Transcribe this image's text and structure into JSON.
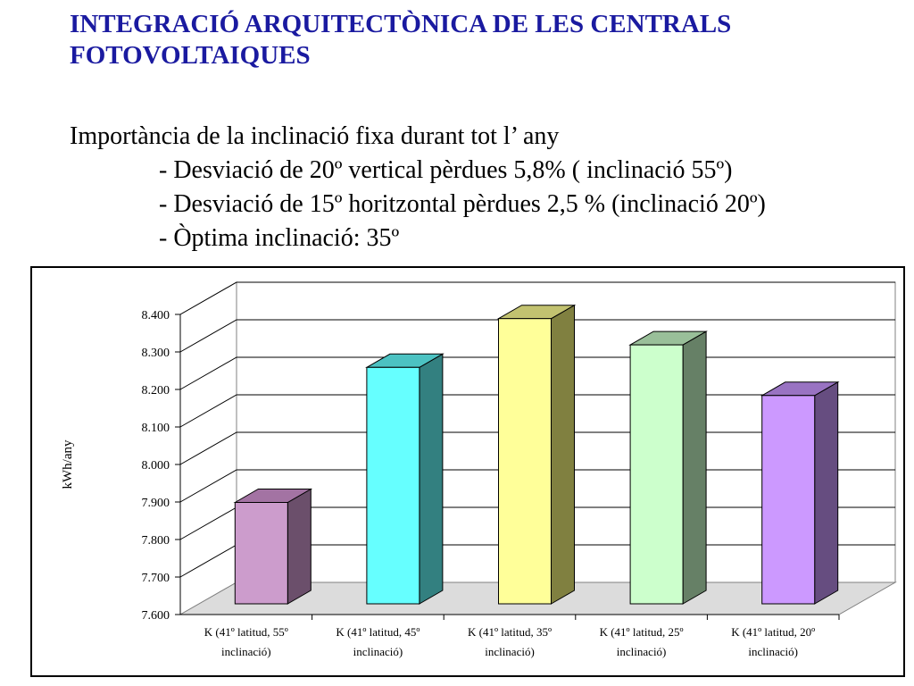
{
  "title": {
    "lines": [
      "INTEGRACIÓ ARQUITECTÒNICA DE LES CENTRALS",
      "FOTOVOLTAIQUES"
    ],
    "color": "#1a1aa0"
  },
  "body": {
    "heading": "Importància de la inclinació fixa durant tot l’ any",
    "bullets": [
      "- Desviació de 20º vertical pèrdues 5,8% ( inclinació 55º)",
      "- Desviació de 15º horitzontal pèrdues 2,5 % (inclinació 20º)",
      "- Òptima inclinació: 35º"
    ]
  },
  "chart_data": {
    "type": "bar",
    "style": "3d-column",
    "ylabel": "kWh/any",
    "ylim": [
      7600,
      8400
    ],
    "y_step": 100,
    "y_tick_labels": [
      "7.600",
      "7.700",
      "7.800",
      "7.900",
      "8.000",
      "8.100",
      "8.200",
      "8.300",
      "8.400"
    ],
    "grid": true,
    "categories": [
      [
        "K (41º latitud, 55º",
        "inclinació)"
      ],
      [
        "K (41º latitud, 45º",
        "inclinació)"
      ],
      [
        "K (41º latitud, 35º",
        "inclinació)"
      ],
      [
        "K (41º latitud, 25º",
        "inclinació)"
      ],
      [
        "K (41º latitud, 20º",
        "inclinació)"
      ]
    ],
    "values": [
      7875,
      8235,
      8365,
      8295,
      8160
    ],
    "bar_colors": [
      {
        "front": "#cc9ccc",
        "side": "#6b4f6b",
        "top": "#a373a3"
      },
      {
        "front": "#66ffff",
        "side": "#338080",
        "top": "#4cc2c2"
      },
      {
        "front": "#ffff99",
        "side": "#808040",
        "top": "#c2c270"
      },
      {
        "front": "#ccffcc",
        "side": "#668066",
        "top": "#99bf99"
      },
      {
        "front": "#cc99ff",
        "side": "#664d80",
        "top": "#9973c2"
      }
    ]
  }
}
